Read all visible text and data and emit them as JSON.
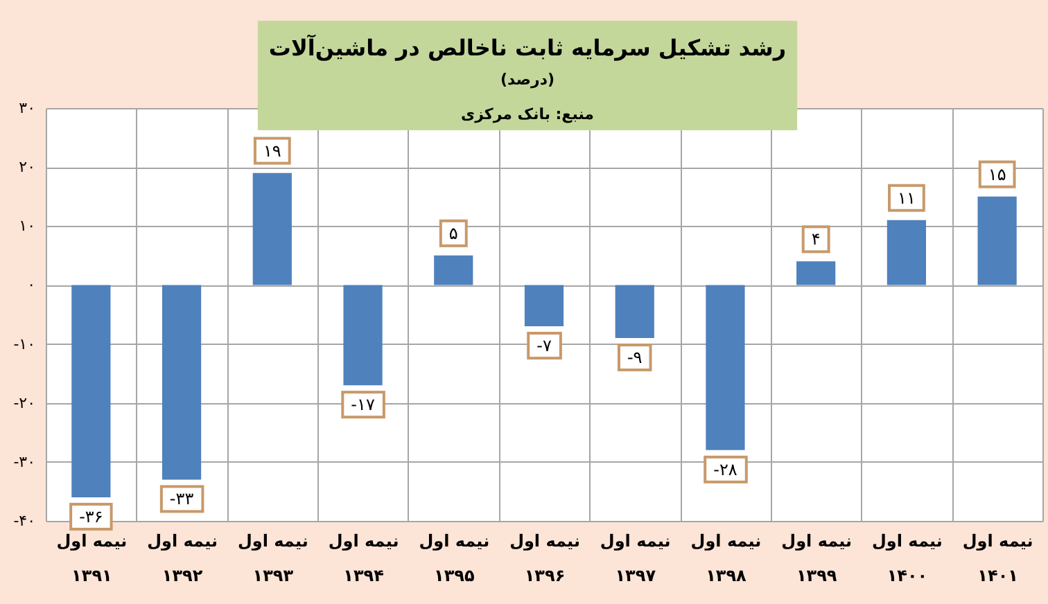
{
  "chart_data": {
    "type": "bar",
    "title": "رشد تشکیل سرمایه ثابت ناخالص در ماشین‌آلات",
    "subtitle": "(درصد)",
    "annotations": [
      "منبع: بانک مرکزی"
    ],
    "categories": [
      "نیمه اول\n۱۳۹۱",
      "نیمه اول\n۱۳۹۲",
      "نیمه اول\n۱۳۹۳",
      "نیمه اول\n۱۳۹۴",
      "نیمه اول\n۱۳۹۵",
      "نیمه اول\n۱۳۹۶",
      "نیمه اول\n۱۳۹۷",
      "نیمه اول\n۱۳۹۸",
      "نیمه اول\n۱۳۹۹",
      "نیمه اول\n۱۴۰۰",
      "نیمه اول\n۱۴۰۱"
    ],
    "values": [
      -36,
      -33,
      19,
      -17,
      5,
      -7,
      -9,
      -28,
      4,
      11,
      15
    ],
    "value_labels": [
      "-۳۶",
      "-۳۳",
      "۱۹",
      "-۱۷",
      "۵",
      "-۷",
      "-۹",
      "-۲۸",
      "۴",
      "۱۱",
      "۱۵"
    ],
    "color": "#4f81bd",
    "ylim": [
      -40,
      30
    ],
    "yticks": [
      {
        "value": 30,
        "label": "۳۰"
      },
      {
        "value": 20,
        "label": "۲۰"
      },
      {
        "value": 10,
        "label": "۱۰"
      },
      {
        "value": 0,
        "label": "۰"
      },
      {
        "value": -10,
        "label": "-۱۰"
      },
      {
        "value": -20,
        "label": "-۲۰"
      },
      {
        "value": -30,
        "label": "-۳۰"
      },
      {
        "value": -40,
        "label": "-۴۰"
      }
    ],
    "grid": true
  }
}
